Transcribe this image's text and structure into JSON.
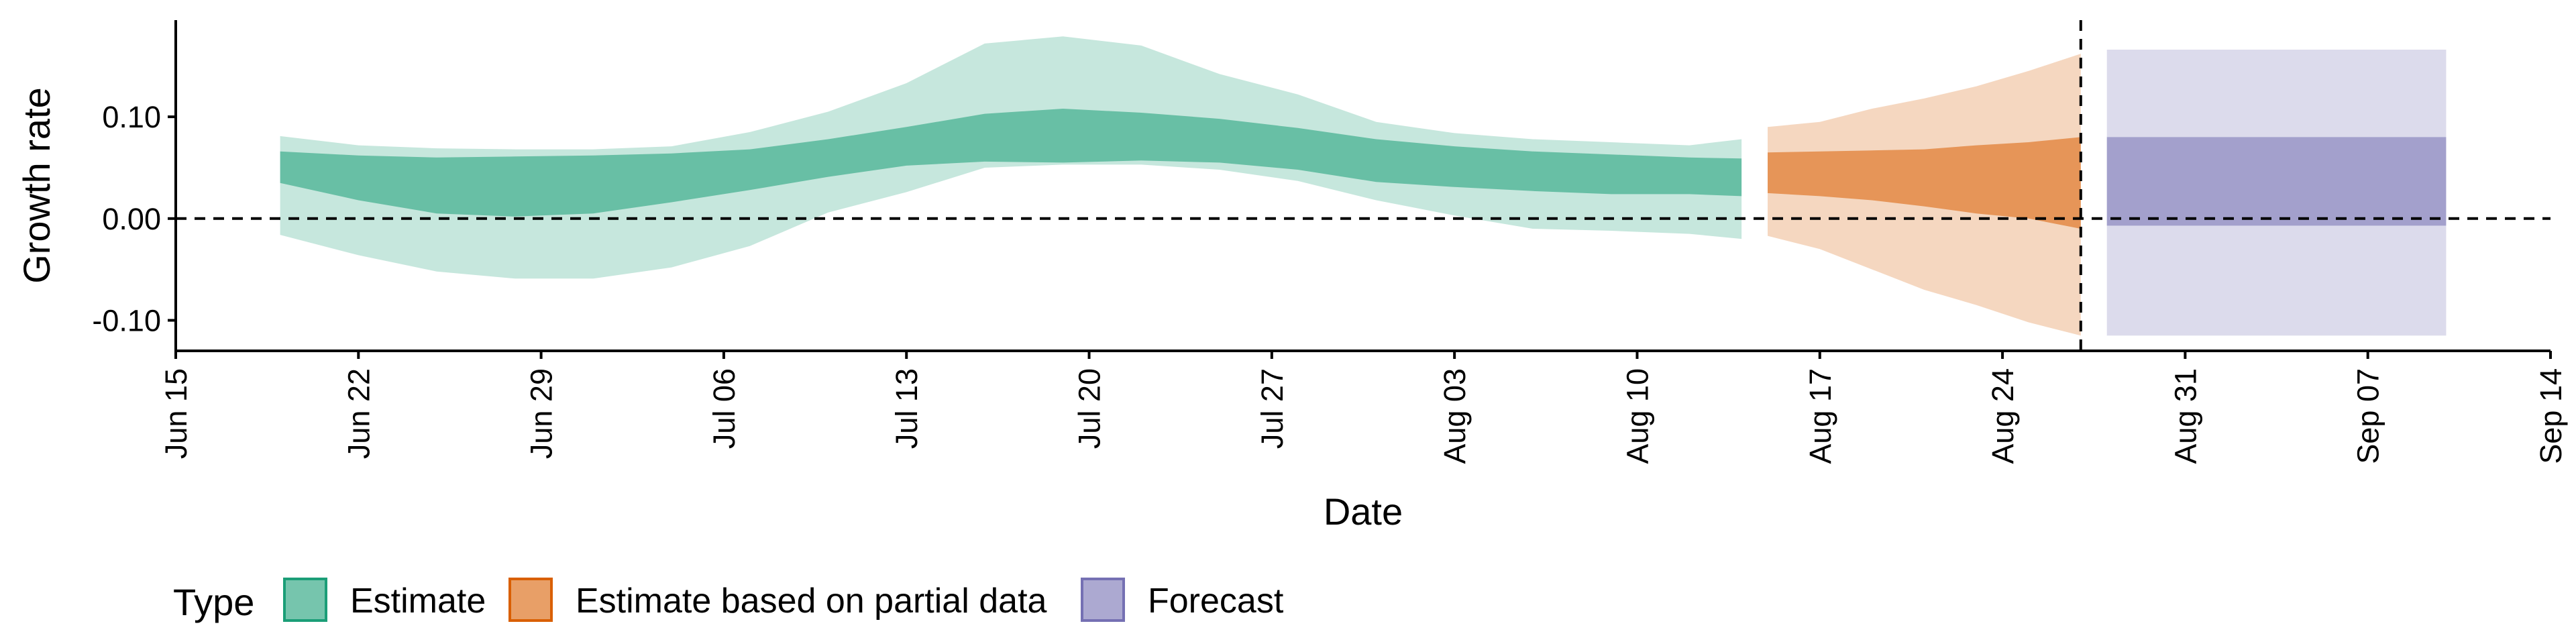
{
  "chart_data": {
    "type": "area",
    "title": "",
    "xlabel": "Date",
    "ylabel": "Growth rate",
    "x_ticks": [
      "Jun 15",
      "Jun 22",
      "Jun 29",
      "Jul 06",
      "Jul 13",
      "Jul 20",
      "Jul 27",
      "Aug 03",
      "Aug 10",
      "Aug 17",
      "Aug 24",
      "Aug 31",
      "Sep 07",
      "Sep 14"
    ],
    "y_ticks": [
      "-0.10",
      "0.00",
      "0.10"
    ],
    "y_tick_values": [
      -0.1,
      0.0,
      0.1
    ],
    "xlim": [
      "2020-06-15",
      "2020-09-14"
    ],
    "ylim": [
      -0.13,
      0.195
    ],
    "grid": false,
    "reference_lines": [
      {
        "axis": "y",
        "value": 0.0,
        "style": "dashed"
      },
      {
        "axis": "x",
        "value": "2020-08-27",
        "style": "dashed"
      }
    ],
    "legend": {
      "title": "Type",
      "placement": "bottom",
      "entries": [
        {
          "label": "Estimate",
          "color": "#1b9e77"
        },
        {
          "label": "Estimate based on partial data",
          "color": "#d95f02"
        },
        {
          "label": "Forecast",
          "color": "#7570b3"
        }
      ]
    },
    "series": [
      {
        "type_key": "Estimate",
        "color": "#1b9e77",
        "x": [
          "2020-06-19",
          "2020-06-22",
          "2020-06-25",
          "2020-06-28",
          "2020-07-01",
          "2020-07-04",
          "2020-07-07",
          "2020-07-10",
          "2020-07-13",
          "2020-07-16",
          "2020-07-19",
          "2020-07-22",
          "2020-07-25",
          "2020-07-28",
          "2020-07-31",
          "2020-08-03",
          "2020-08-06",
          "2020-08-09",
          "2020-08-12",
          "2020-08-14"
        ],
        "outer_lower": [
          -0.016,
          -0.036,
          -0.052,
          -0.059,
          -0.059,
          -0.048,
          -0.027,
          0.006,
          0.026,
          0.05,
          0.053,
          0.053,
          0.048,
          0.037,
          0.018,
          0.003,
          -0.01,
          -0.012,
          -0.015,
          -0.02
        ],
        "inner_lower": [
          0.035,
          0.018,
          0.005,
          0.002,
          0.005,
          0.016,
          0.028,
          0.041,
          0.052,
          0.056,
          0.055,
          0.057,
          0.055,
          0.048,
          0.036,
          0.031,
          0.027,
          0.024,
          0.024,
          0.022
        ],
        "inner_upper": [
          0.066,
          0.062,
          0.06,
          0.061,
          0.062,
          0.064,
          0.068,
          0.078,
          0.09,
          0.103,
          0.108,
          0.104,
          0.098,
          0.089,
          0.078,
          0.071,
          0.066,
          0.063,
          0.06,
          0.059
        ],
        "outer_upper": [
          0.081,
          0.072,
          0.069,
          0.068,
          0.068,
          0.071,
          0.085,
          0.105,
          0.133,
          0.172,
          0.179,
          0.17,
          0.142,
          0.122,
          0.095,
          0.084,
          0.078,
          0.075,
          0.072,
          0.078
        ]
      },
      {
        "type_key": "Estimate based on partial data",
        "color": "#d95f02",
        "x": [
          "2020-08-15",
          "2020-08-17",
          "2020-08-19",
          "2020-08-21",
          "2020-08-23",
          "2020-08-25",
          "2020-08-27"
        ],
        "outer_lower": [
          -0.017,
          -0.03,
          -0.05,
          -0.07,
          -0.085,
          -0.102,
          -0.115
        ],
        "inner_lower": [
          0.025,
          0.022,
          0.018,
          0.012,
          0.005,
          0.0,
          -0.01
        ],
        "inner_upper": [
          0.065,
          0.066,
          0.067,
          0.068,
          0.072,
          0.075,
          0.08
        ],
        "outer_upper": [
          0.09,
          0.095,
          0.108,
          0.118,
          0.13,
          0.145,
          0.162
        ]
      },
      {
        "type_key": "Forecast",
        "color": "#7570b3",
        "x": [
          "2020-08-28",
          "2020-09-10"
        ],
        "outer_lower": [
          -0.115,
          -0.115
        ],
        "inner_lower": [
          -0.007,
          -0.007
        ],
        "inner_upper": [
          0.08,
          0.08
        ],
        "outer_upper": [
          0.166,
          0.166
        ]
      }
    ]
  }
}
